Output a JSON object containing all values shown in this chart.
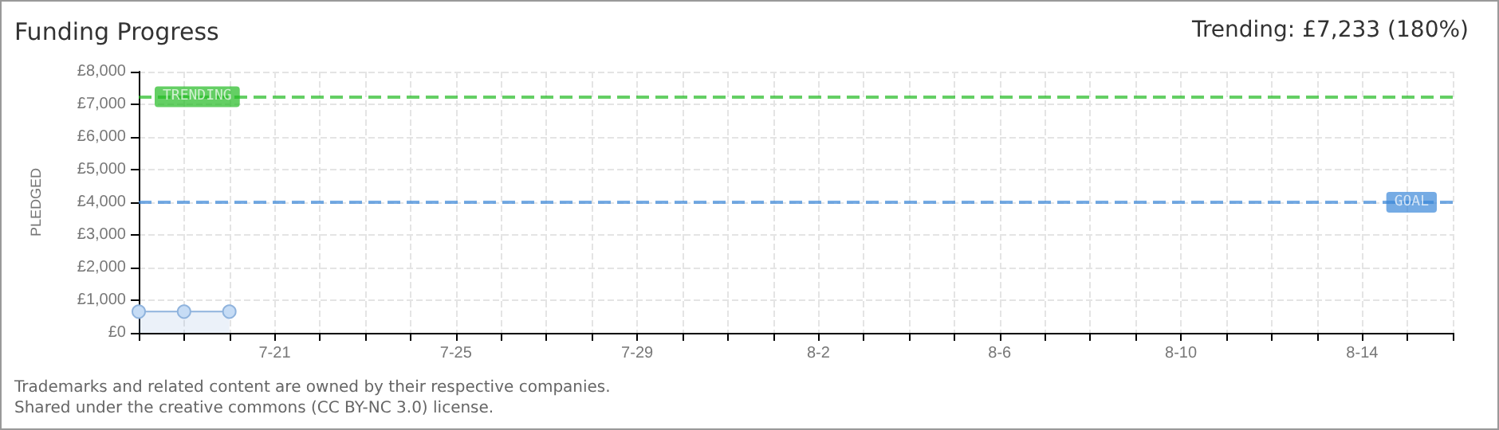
{
  "chart_data": {
    "type": "area",
    "title": "Funding Progress",
    "ylabel": "PLEDGED",
    "annotations": [
      "Trending: £7,233 (180%)",
      "Trademarks and related content are owned by their respective companies.",
      "Shared under the creative commons (CC BY-NC 3.0) license."
    ],
    "x": [
      "--07-18",
      "--07-19",
      "--07-20"
    ],
    "series": [
      {
        "color": "#8fb3dd",
        "values": [
          650,
          650,
          650
        ]
      }
    ],
    "xlim": [
      "--07-18",
      "--08-16"
    ],
    "xticks": [
      {
        "value": "--07-18",
        "label": null
      },
      {
        "value": "--07-19",
        "label": null
      },
      {
        "value": "--07-20",
        "label": null
      },
      {
        "value": "--07-21",
        "label": "7-21"
      },
      {
        "value": "--07-22",
        "label": null
      },
      {
        "value": "--07-23",
        "label": null
      },
      {
        "value": "--07-24",
        "label": null
      },
      {
        "value": "--07-25",
        "label": "7-25"
      },
      {
        "value": "--07-26",
        "label": null
      },
      {
        "value": "--07-27",
        "label": null
      },
      {
        "value": "--07-28",
        "label": null
      },
      {
        "value": "--07-29",
        "label": "7-29"
      },
      {
        "value": "--07-30",
        "label": null
      },
      {
        "value": "--07-31",
        "label": null
      },
      {
        "value": "--08-01",
        "label": null
      },
      {
        "value": "--08-02",
        "label": "8-2"
      },
      {
        "value": "--08-03",
        "label": null
      },
      {
        "value": "--08-04",
        "label": null
      },
      {
        "value": "--08-05",
        "label": null
      },
      {
        "value": "--08-06",
        "label": "8-6"
      },
      {
        "value": "--08-07",
        "label": null
      },
      {
        "value": "--08-08",
        "label": null
      },
      {
        "value": "--08-09",
        "label": null
      },
      {
        "value": "--08-10",
        "label": "8-10"
      },
      {
        "value": "--08-11",
        "label": null
      },
      {
        "value": "--08-12",
        "label": null
      },
      {
        "value": "--08-13",
        "label": null
      },
      {
        "value": "--08-14",
        "label": "8-14"
      },
      {
        "value": "--08-15",
        "label": null
      },
      {
        "value": "--08-16",
        "label": null
      }
    ],
    "ylim": [
      0,
      8000
    ],
    "yticks": [
      {
        "value": 0,
        "label": "£0"
      },
      {
        "value": 1000,
        "label": "£1,000"
      },
      {
        "value": 2000,
        "label": "£2,000"
      },
      {
        "value": 3000,
        "label": "£3,000"
      },
      {
        "value": 4000,
        "label": "£4,000"
      },
      {
        "value": 5000,
        "label": "£5,000"
      },
      {
        "value": 6000,
        "label": "£6,000"
      },
      {
        "value": 7000,
        "label": "£7,000"
      },
      {
        "value": 8000,
        "label": "£8,000"
      }
    ],
    "ref_lines": [
      {
        "axis": "y",
        "value": 7233,
        "label": "TRENDING",
        "color": "#22bb22",
        "line_style": "dashed"
      },
      {
        "axis": "y",
        "value": 4000,
        "label": "GOAL",
        "color": "#3a88d8",
        "line_style": "dashed"
      }
    ],
    "grid": true,
    "marker": "circle",
    "line_style": "solid"
  }
}
